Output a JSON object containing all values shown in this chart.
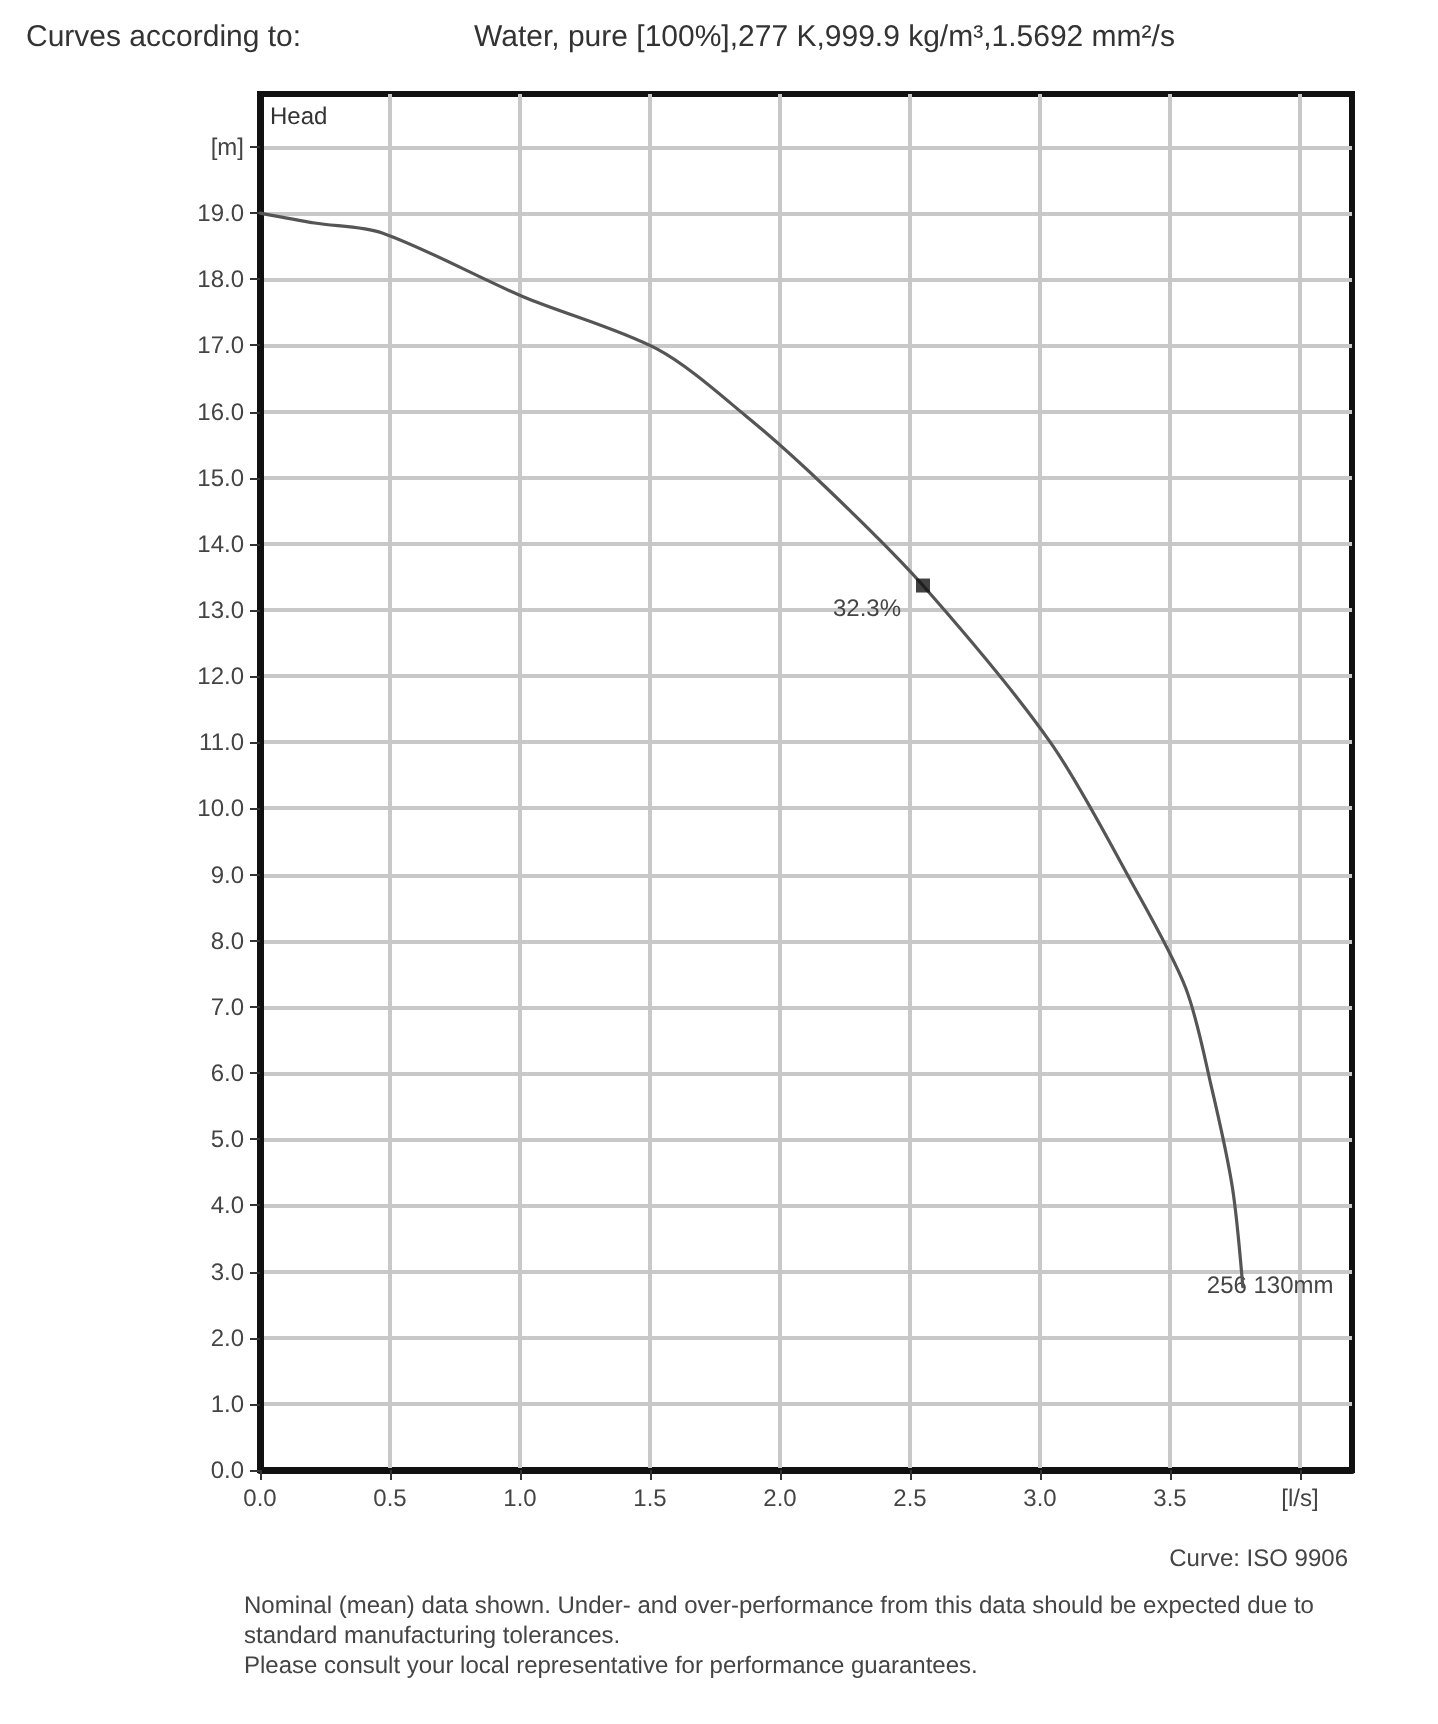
{
  "chart_data": {
    "type": "line",
    "title": "Curves according to:",
    "subtitle": "Water, pure [100%],277 K,999.9 kg/m³,1.5692 mm²/s",
    "ylabel": "Head",
    "xlim": [
      0,
      4.2
    ],
    "xticks": [
      {
        "value": 0,
        "label": "0.0"
      },
      0.5,
      {
        "value": 1,
        "label": "1.0"
      },
      1.5,
      {
        "value": 2,
        "label": "2.0"
      },
      2.5,
      {
        "value": 3,
        "label": "3.0"
      },
      3.5,
      {
        "value": 4,
        "label": "[l/s]"
      }
    ],
    "ylim": [
      0,
      20.8
    ],
    "yticks": [
      {
        "value": 0,
        "label": "0.0"
      },
      {
        "value": 1,
        "label": "1.0"
      },
      {
        "value": 2,
        "label": "2.0"
      },
      {
        "value": 3,
        "label": "3.0"
      },
      {
        "value": 4,
        "label": "4.0"
      },
      {
        "value": 5,
        "label": "5.0"
      },
      {
        "value": 6,
        "label": "6.0"
      },
      {
        "value": 7,
        "label": "7.0"
      },
      {
        "value": 8,
        "label": "8.0"
      },
      {
        "value": 9,
        "label": "9.0"
      },
      {
        "value": 10,
        "label": "10.0"
      },
      {
        "value": 11,
        "label": "11.0"
      },
      {
        "value": 12,
        "label": "12.0"
      },
      {
        "value": 13,
        "label": "13.0"
      },
      {
        "value": 14,
        "label": "14.0"
      },
      {
        "value": 15,
        "label": "15.0"
      },
      {
        "value": 16,
        "label": "16.0"
      },
      {
        "value": 17,
        "label": "17.0"
      },
      {
        "value": 18,
        "label": "18.0"
      },
      {
        "value": 19,
        "label": "19.0"
      },
      {
        "value": 20,
        "label": "[m]"
      }
    ],
    "grid": true,
    "series": [
      {
        "type": "line",
        "color": "#555555",
        "marker": "none",
        "line_style": "solid",
        "x": [
          0,
          0.21,
          0.47,
          1.01,
          1.53,
          1.87,
          2.18,
          2.55,
          3.04,
          3.35,
          3.56,
          3.66,
          3.74,
          3.78
        ],
        "values": [
          19.0,
          18.85,
          18.7,
          17.74,
          16.94,
          15.93,
          14.84,
          13.37,
          11.0,
          8.9,
          7.29,
          5.78,
          4.27,
          2.77
        ]
      },
      {
        "type": "scatter",
        "color": "#111111",
        "marker": "square",
        "x": [
          2.55
        ],
        "values": [
          13.37
        ]
      }
    ],
    "annotations": [
      {
        "text": "32.3%",
        "x": 2.55,
        "y": 13.37
      },
      {
        "text": "256 130mm",
        "x": 3.78,
        "y": 2.77
      },
      "Curve: ISO 9906",
      "Nominal (mean) data shown. Under- and over-performance from this data should be expected due to standard manufacturing tolerances.",
      "Please consult your local representative for performance guarantees."
    ]
  }
}
